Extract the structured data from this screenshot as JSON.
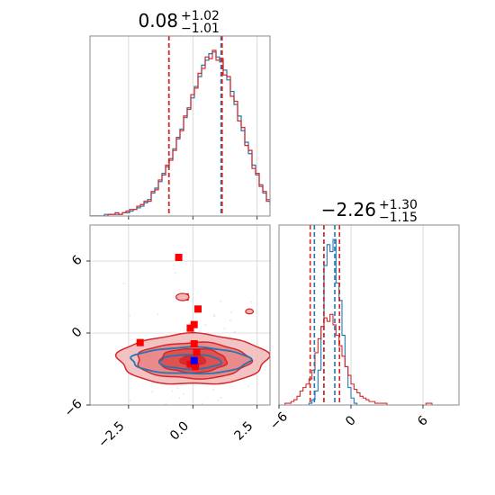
{
  "colors": {
    "red": "#d62728",
    "blue": "#1f77b4",
    "fill_light": "#f1b8b8",
    "fill_mid": "#e88080",
    "fill_dark": "#de4747",
    "grid": "#d0d0d0",
    "frame": "#888888"
  },
  "chart_data": [
    {
      "type": "histogram",
      "panel": "param1-marginal",
      "title": "0.08",
      "title_upper": "+1.02",
      "title_lower": "−1.01",
      "xlim": [
        -4.0,
        3.0
      ],
      "grid": true,
      "quantile_lines": [
        -0.93,
        0.08,
        1.1
      ],
      "series": [
        {
          "color": "#1f77b4",
          "bin_start": -4.0,
          "bin_width": 0.14,
          "counts": [
            0,
            0,
            0,
            0,
            1,
            1,
            1,
            1,
            1,
            2,
            2,
            3,
            4,
            5,
            6,
            8,
            10,
            14,
            17,
            21,
            26,
            30,
            35,
            41,
            47,
            53,
            60,
            66,
            72,
            79,
            85,
            92,
            95,
            99,
            100,
            97,
            94,
            89,
            83,
            76,
            68,
            61,
            52,
            45,
            38,
            31,
            25,
            19,
            14,
            10,
            7,
            5,
            3,
            2,
            1,
            1,
            0,
            0,
            0,
            0
          ]
        },
        {
          "color": "#d62728",
          "bin_start": -4.0,
          "bin_width": 0.14,
          "counts": [
            0,
            0,
            0,
            0,
            0,
            1,
            1,
            2,
            1,
            2,
            3,
            4,
            4,
            6,
            7,
            9,
            9,
            15,
            16,
            22,
            25,
            31,
            34,
            40,
            48,
            52,
            61,
            65,
            74,
            78,
            87,
            90,
            97,
            96,
            101,
            95,
            96,
            86,
            85,
            73,
            70,
            58,
            54,
            43,
            40,
            29,
            26,
            18,
            15,
            9,
            8,
            4,
            4,
            2,
            1,
            1,
            0,
            1,
            0,
            0
          ]
        }
      ]
    },
    {
      "type": "histogram",
      "panel": "param2-marginal",
      "title": "−2.26",
      "title_upper": "+1.30",
      "title_lower": "−1.15",
      "xlim": [
        -6.0,
        9.0
      ],
      "xticks": [
        -6,
        0,
        6
      ],
      "xtick_labels": [
        "−6",
        "0",
        "6"
      ],
      "grid": true,
      "quantile_lines_blue": [
        -3.05,
        -2.26,
        -1.35
      ],
      "quantile_lines_red": [
        -3.4,
        -2.26,
        -0.96
      ],
      "series": [
        {
          "color": "#1f77b4",
          "bin_start": -6.0,
          "bin_width": 0.25,
          "counts": [
            0,
            0,
            0,
            0,
            0,
            0,
            0,
            0,
            0,
            0,
            1,
            3,
            8,
            20,
            45,
            80,
            92,
            88,
            95,
            70,
            60,
            40,
            22,
            10,
            4,
            1,
            0,
            0,
            0,
            0,
            0,
            0,
            0,
            0,
            0,
            0,
            0,
            0,
            0,
            0,
            0,
            0,
            0,
            0,
            0,
            0,
            0,
            0,
            0,
            0,
            0,
            0,
            0,
            0,
            0,
            0,
            0,
            0,
            0,
            0
          ]
        },
        {
          "color": "#d62728",
          "bin_start": -6.0,
          "bin_width": 0.25,
          "counts": [
            0,
            0,
            1,
            1,
            2,
            3,
            5,
            8,
            10,
            12,
            15,
            20,
            30,
            38,
            45,
            50,
            48,
            52,
            46,
            40,
            34,
            28,
            22,
            17,
            12,
            9,
            7,
            5,
            4,
            3,
            2,
            2,
            1,
            1,
            1,
            1,
            0,
            0,
            0,
            0,
            0,
            0,
            0,
            0,
            0,
            0,
            0,
            0,
            0,
            1,
            1,
            0,
            0,
            0,
            0,
            0,
            0,
            0,
            0,
            0
          ]
        }
      ]
    },
    {
      "type": "contour",
      "panel": "param1-vs-param2",
      "xlim": [
        -4.0,
        3.0
      ],
      "ylim": [
        -6.0,
        9.0
      ],
      "xticks": [
        -2.5,
        0.0,
        2.5
      ],
      "xtick_labels": [
        "−2.5",
        "0.0",
        "2.5"
      ],
      "yticks": [
        -6,
        0,
        6
      ],
      "ytick_labels": [
        "−6",
        "0",
        "6"
      ],
      "grid": true,
      "red_contour_levels": [
        {
          "center": [
            0.0,
            -2.2
          ],
          "radii": [
            2.9,
            2.1
          ]
        },
        {
          "center": [
            0.0,
            -2.3
          ],
          "radii": [
            2.2,
            1.5
          ]
        },
        {
          "center": [
            0.0,
            -2.3
          ],
          "radii": [
            1.3,
            1.0
          ]
        },
        {
          "center": [
            0.0,
            -2.3
          ],
          "radii": [
            0.5,
            0.4
          ]
        }
      ],
      "blue_contour_levels": [
        {
          "center": [
            -0.1,
            -2.3
          ],
          "radii": [
            2.3,
            1.1
          ]
        },
        {
          "center": [
            -0.1,
            -2.4
          ],
          "radii": [
            1.2,
            0.6
          ]
        }
      ],
      "red_points": [
        [
          -0.55,
          6.3
        ],
        [
          -0.3,
          3.0
        ],
        [
          0.2,
          2.0
        ],
        [
          0.05,
          0.7
        ],
        [
          -0.1,
          0.4
        ],
        [
          -2.05,
          -0.8
        ],
        [
          0.05,
          -0.9
        ],
        [
          0.15,
          -1.6
        ],
        [
          -0.1,
          -2.6
        ],
        [
          0.1,
          -2.8
        ]
      ],
      "blue_points": [
        [
          0.05,
          -2.3
        ]
      ]
    }
  ]
}
